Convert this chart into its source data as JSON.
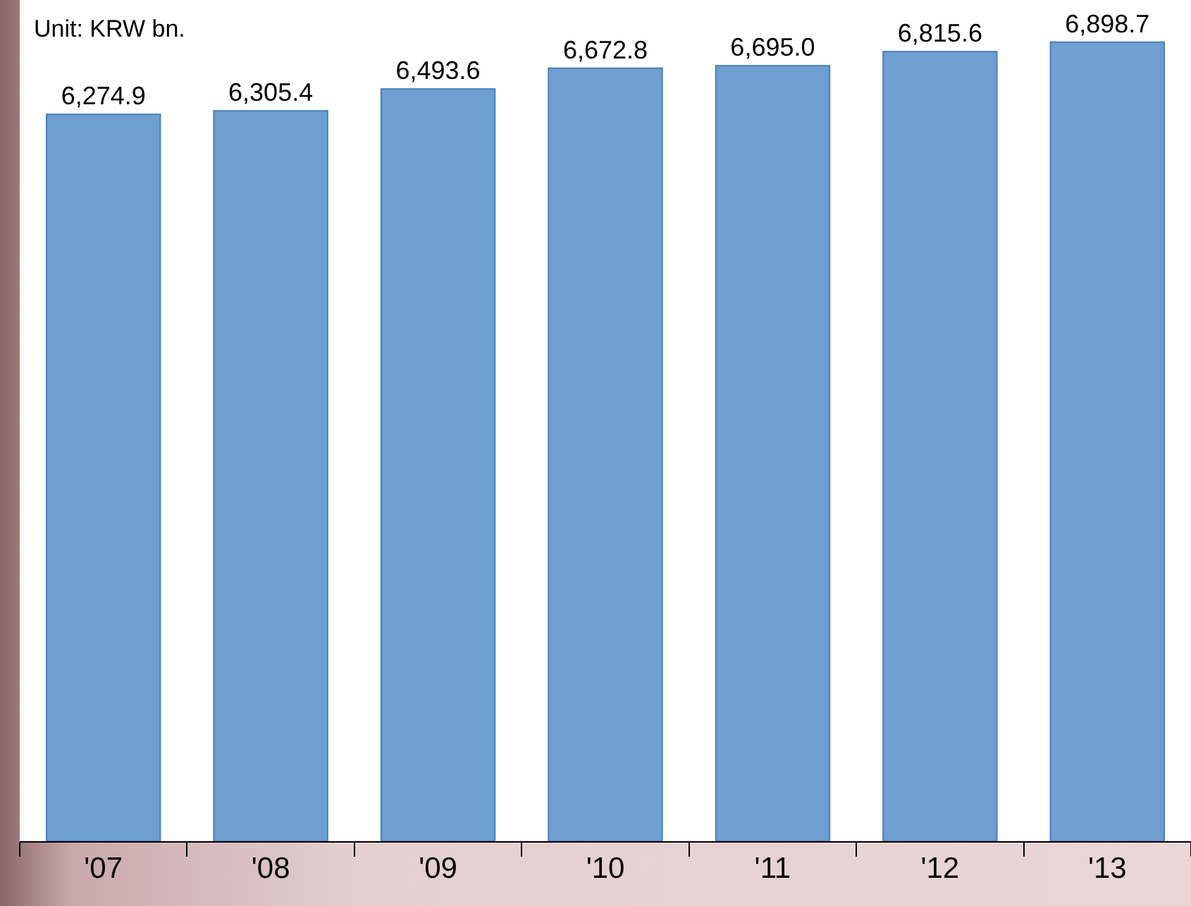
{
  "chart_data": {
    "type": "bar",
    "annotations": [
      "Unit: KRW bn."
    ],
    "categories": [
      "'07",
      "'08",
      "'09",
      "'10",
      "'11",
      "'12",
      "'13"
    ],
    "series": [
      {
        "color": "#6e9fd0",
        "values": [
          6274.9,
          6305.4,
          6493.6,
          6672.8,
          6695.0,
          6815.6,
          6898.7
        ],
        "value_labels": [
          "6,274.9",
          "6,305.4",
          "6,493.6",
          "6,672.8",
          "6,695.0",
          "6,815.6",
          "6,898.7"
        ]
      }
    ],
    "tick_labels": "x",
    "grid": false,
    "legend": false
  }
}
